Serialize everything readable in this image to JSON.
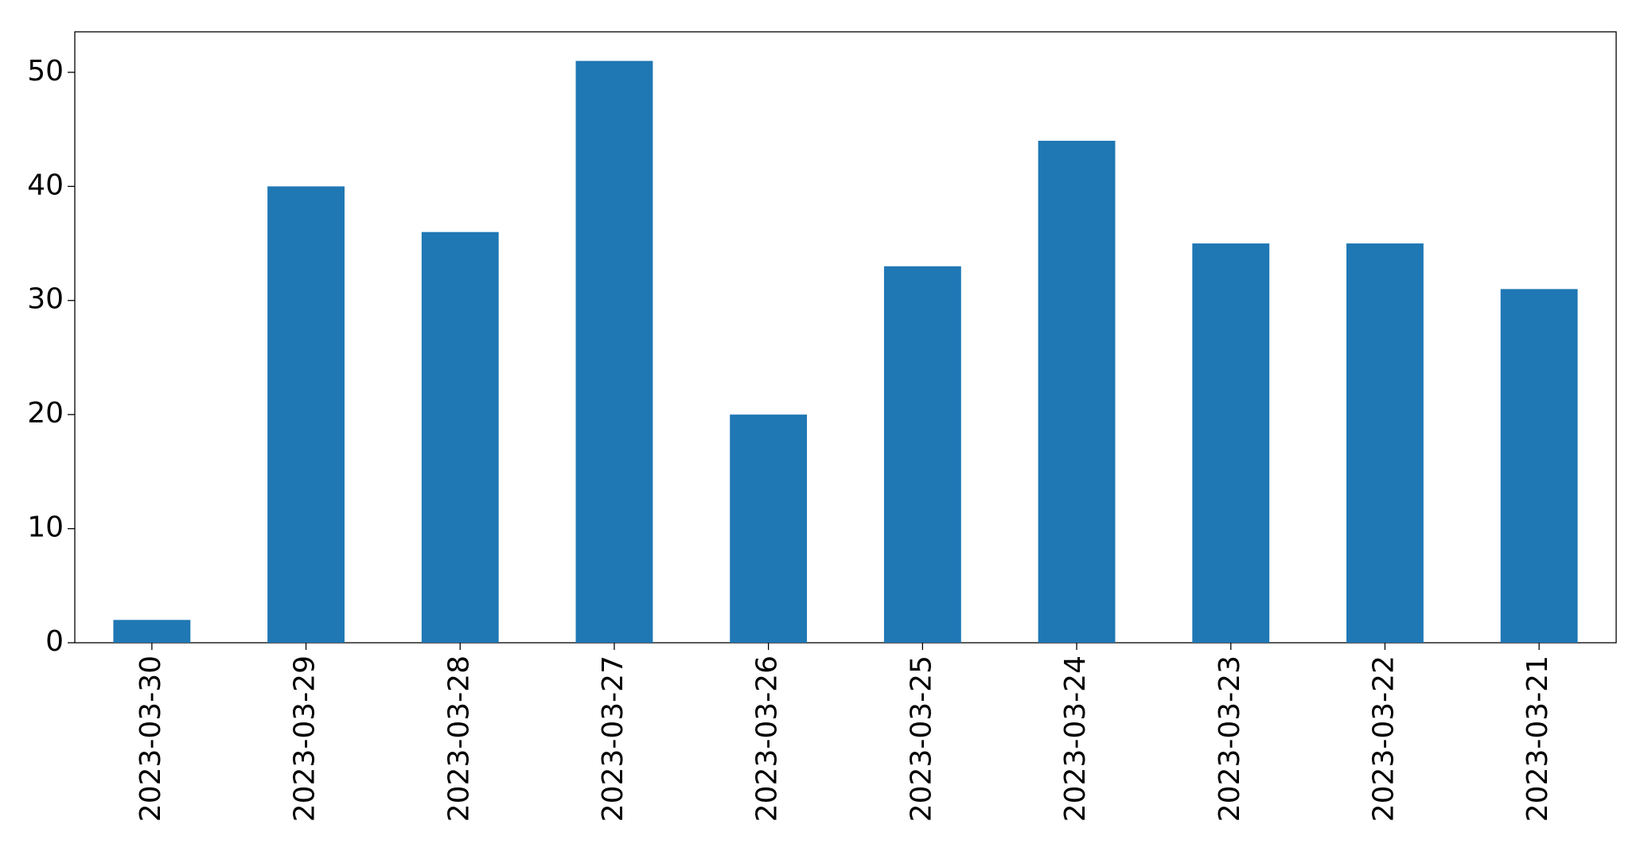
{
  "chart_data": {
    "type": "bar",
    "categories": [
      "2023-03-30",
      "2023-03-29",
      "2023-03-28",
      "2023-03-27",
      "2023-03-26",
      "2023-03-25",
      "2023-03-24",
      "2023-03-23",
      "2023-03-22",
      "2023-03-21"
    ],
    "values": [
      2,
      40,
      36,
      51,
      20,
      33,
      44,
      35,
      35,
      31
    ],
    "color": "#1f77b4",
    "ylim": [
      0,
      53.55
    ],
    "yticks": [
      0,
      10,
      20,
      30,
      40,
      50
    ],
    "grid": false
  }
}
